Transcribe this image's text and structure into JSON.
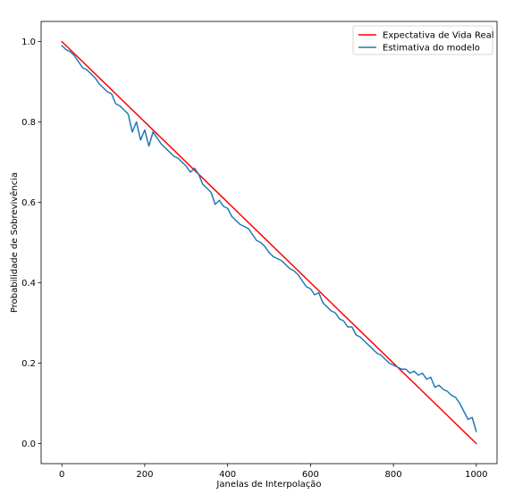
{
  "chart_data": {
    "type": "line",
    "title": "",
    "xlabel": "Janelas de Interpolação",
    "ylabel": "Probabilidade de Sobrevivência",
    "xlim": [
      -50,
      1050
    ],
    "ylim": [
      -0.05,
      1.05
    ],
    "xticks": [
      0,
      200,
      400,
      600,
      800,
      1000
    ],
    "yticks": [
      0.0,
      0.2,
      0.4,
      0.6,
      0.8,
      1.0
    ],
    "xtick_labels": [
      "0",
      "200",
      "400",
      "600",
      "800",
      "1000"
    ],
    "ytick_labels": [
      "0.0",
      "0.2",
      "0.4",
      "0.6",
      "0.8",
      "1.0"
    ],
    "grid": false,
    "legend_position": "upper right",
    "series": [
      {
        "name": "Expectativa de Vida Real",
        "color": "#ff0000",
        "x": [
          0,
          1000
        ],
        "y": [
          1.0,
          0.0
        ]
      },
      {
        "name": "Estimativa do modelo",
        "color": "#1f77b4",
        "x": [
          0,
          10,
          20,
          30,
          40,
          50,
          60,
          70,
          80,
          90,
          100,
          110,
          120,
          130,
          140,
          150,
          160,
          170,
          180,
          190,
          200,
          210,
          220,
          230,
          240,
          250,
          260,
          270,
          280,
          290,
          300,
          310,
          320,
          330,
          340,
          350,
          360,
          370,
          380,
          390,
          400,
          410,
          420,
          430,
          440,
          450,
          460,
          470,
          480,
          490,
          500,
          510,
          520,
          530,
          540,
          550,
          560,
          570,
          580,
          590,
          600,
          610,
          620,
          630,
          640,
          650,
          660,
          670,
          680,
          690,
          700,
          710,
          720,
          730,
          740,
          750,
          760,
          770,
          780,
          790,
          800,
          810,
          820,
          830,
          840,
          850,
          860,
          870,
          880,
          890,
          900,
          910,
          920,
          930,
          940,
          950,
          960,
          970,
          980,
          990,
          1000
        ],
        "y": [
          0.99,
          0.98,
          0.975,
          0.965,
          0.95,
          0.935,
          0.93,
          0.92,
          0.91,
          0.895,
          0.885,
          0.875,
          0.87,
          0.845,
          0.84,
          0.83,
          0.82,
          0.775,
          0.8,
          0.755,
          0.78,
          0.74,
          0.775,
          0.76,
          0.745,
          0.735,
          0.725,
          0.715,
          0.71,
          0.7,
          0.69,
          0.675,
          0.685,
          0.67,
          0.645,
          0.635,
          0.625,
          0.595,
          0.605,
          0.59,
          0.585,
          0.565,
          0.555,
          0.545,
          0.54,
          0.535,
          0.52,
          0.505,
          0.5,
          0.49,
          0.475,
          0.465,
          0.46,
          0.455,
          0.445,
          0.435,
          0.43,
          0.42,
          0.405,
          0.39,
          0.385,
          0.37,
          0.375,
          0.35,
          0.34,
          0.33,
          0.325,
          0.31,
          0.305,
          0.29,
          0.29,
          0.27,
          0.265,
          0.255,
          0.245,
          0.235,
          0.225,
          0.22,
          0.21,
          0.2,
          0.195,
          0.19,
          0.185,
          0.185,
          0.175,
          0.18,
          0.17,
          0.175,
          0.16,
          0.165,
          0.14,
          0.145,
          0.135,
          0.13,
          0.12,
          0.115,
          0.1,
          0.08,
          0.06,
          0.065,
          0.03
        ]
      }
    ]
  }
}
